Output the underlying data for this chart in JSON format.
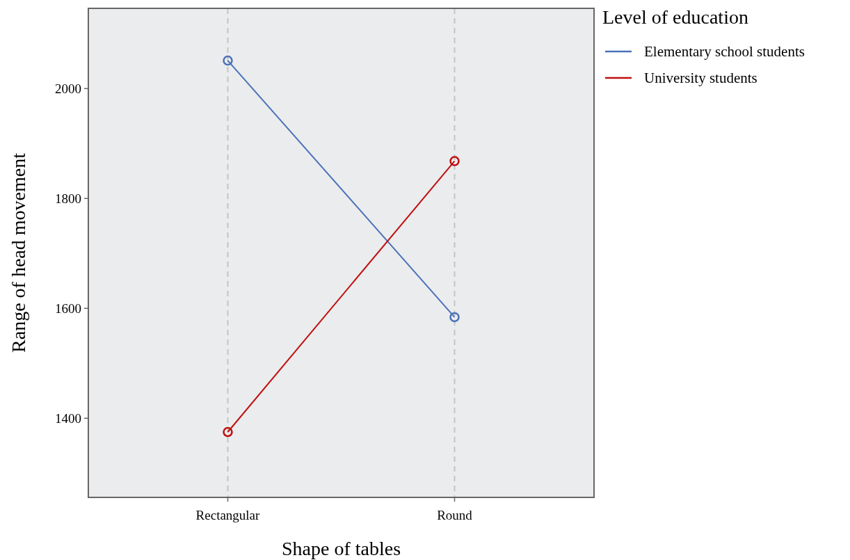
{
  "chart_data": {
    "type": "line",
    "xlabel": "Shape of tables",
    "ylabel": "Range of head movement",
    "legend_title": "Level of education",
    "categories": [
      "Rectangular",
      "Round"
    ],
    "series": [
      {
        "name": "Elementary school students",
        "color": "#4a72b8",
        "values": [
          2051,
          1584
        ]
      },
      {
        "name": "University students",
        "color": "#c00f0f",
        "values": [
          1375,
          1868
        ]
      }
    ],
    "ylim": [
      1256,
      2146
    ],
    "yticks": [
      1400,
      1600,
      1800,
      2000
    ],
    "grid": "x",
    "legend": "top right",
    "marker": "circle",
    "line_style": "solid"
  }
}
